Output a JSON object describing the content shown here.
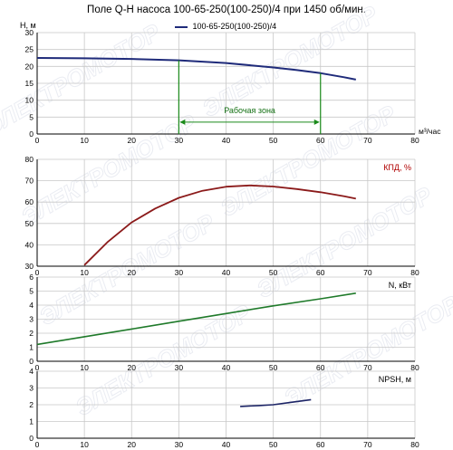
{
  "title": "Поле Q-H насоса 100-65-250(100-250)/4 при 1450 об/мин.",
  "colors": {
    "head_curve": "#1f2b7a",
    "efficiency_curve": "#8b1a1a",
    "power_curve": "#1f7a2a",
    "npsh_curve": "#1c2466",
    "work_zone": "#1a8a1a",
    "grid": "#c8c8c8",
    "watermark": "#d9dde8"
  },
  "watermark_text": "ЭЛЕКТРОМОТОР",
  "chart_data": [
    {
      "type": "line",
      "panel": "head",
      "ylabel": "H, м",
      "xlabel": "м³/час",
      "xlim": [
        0,
        80
      ],
      "ylim": [
        0,
        30
      ],
      "xticks": [
        "0",
        "10",
        "20",
        "30",
        "40",
        "50",
        "60",
        "70",
        "80"
      ],
      "yticks": [
        "0",
        "5",
        "10",
        "15",
        "20",
        "25",
        "30"
      ],
      "grid": true,
      "legend_position": "top-center",
      "series": [
        {
          "name": "100-65-250(100-250)/4",
          "x": [
            0,
            10,
            20,
            30,
            40,
            50,
            55,
            60,
            65,
            67.5
          ],
          "y": [
            22.5,
            22.4,
            22.2,
            21.8,
            21.0,
            19.7,
            18.9,
            18.0,
            16.8,
            16.1
          ]
        }
      ],
      "annotation": {
        "text": "Рабочая зона",
        "x_start": 30,
        "x_end": 60,
        "arrow_y": 3.5
      }
    },
    {
      "type": "line",
      "panel": "efficiency",
      "ylabel": "КПД, %",
      "xlim": [
        0,
        80
      ],
      "ylim": [
        30,
        80
      ],
      "xticks": [
        "0",
        "10",
        "20",
        "30",
        "40",
        "50",
        "60",
        "70",
        "80"
      ],
      "yticks": [
        "30",
        "40",
        "50",
        "60",
        "70",
        "80"
      ],
      "grid": true,
      "series": [
        {
          "x": [
            10,
            15,
            20,
            25,
            30,
            35,
            40,
            45,
            50,
            55,
            60,
            65,
            67.5
          ],
          "y": [
            30.5,
            41.5,
            50.5,
            57.0,
            62.0,
            65.3,
            67.2,
            67.8,
            67.3,
            66.1,
            64.6,
            62.7,
            61.6
          ]
        }
      ]
    },
    {
      "type": "line",
      "panel": "power",
      "ylabel": "N, кВт",
      "xlim": [
        0,
        80
      ],
      "ylim": [
        0,
        6
      ],
      "xticks": [
        "0",
        "10",
        "20",
        "30",
        "40",
        "50",
        "60",
        "70",
        "80"
      ],
      "yticks": [
        "0",
        "1",
        "2",
        "3",
        "4",
        "5",
        "6"
      ],
      "grid": true,
      "series": [
        {
          "x": [
            0,
            10,
            20,
            30,
            40,
            50,
            60,
            67.5
          ],
          "y": [
            1.2,
            1.75,
            2.3,
            2.85,
            3.4,
            3.95,
            4.45,
            4.85
          ]
        }
      ]
    },
    {
      "type": "line",
      "panel": "npsh",
      "ylabel": "NPSH, м",
      "xlim": [
        0,
        80
      ],
      "ylim": [
        0,
        4
      ],
      "xticks": [
        "0",
        "10",
        "20",
        "30",
        "40",
        "50",
        "60",
        "70",
        "80"
      ],
      "yticks": [
        "0",
        "1",
        "2",
        "3",
        "4"
      ],
      "grid": true,
      "series": [
        {
          "x": [
            43,
            47,
            50,
            54,
            58
          ],
          "y": [
            1.9,
            1.95,
            2.0,
            2.15,
            2.3
          ]
        }
      ]
    }
  ]
}
